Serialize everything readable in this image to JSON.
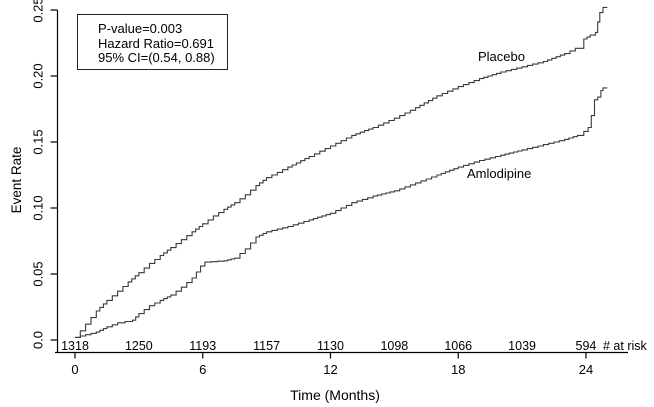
{
  "stats_box": {
    "lines": [
      "P-value=0.003",
      "Hazard Ratio=0.691",
      "95% CI=(0.54, 0.88)"
    ]
  },
  "chart_data": {
    "type": "line",
    "subtype": "kaplan-meier-step",
    "title": "",
    "xlabel": "Time (Months)",
    "ylabel": "Event Rate",
    "xlim": [
      0,
      25
    ],
    "ylim": [
      0,
      0.25
    ],
    "grid": false,
    "legend_position": "inline-curve-labels",
    "xticks": [
      0,
      6,
      12,
      18,
      24
    ],
    "yticks": [
      "0.0",
      "0.05",
      "0.10",
      "0.15",
      "0.20",
      "0.25"
    ],
    "axis_color": "#000000",
    "curve_color": "#3a3a3a",
    "stats": {
      "p_value": 0.003,
      "hazard_ratio": 0.691,
      "ci_95": [
        0.54,
        0.88
      ]
    },
    "series": [
      {
        "name": "Placebo",
        "color": "#3a3a3a",
        "points": [
          [
            0,
            0.002
          ],
          [
            0.5,
            0.012
          ],
          [
            1,
            0.022
          ],
          [
            1.5,
            0.03
          ],
          [
            2,
            0.037
          ],
          [
            2.5,
            0.044
          ],
          [
            3,
            0.051
          ],
          [
            3.5,
            0.058
          ],
          [
            4,
            0.064
          ],
          [
            4.5,
            0.07
          ],
          [
            5,
            0.076
          ],
          [
            5.5,
            0.082
          ],
          [
            6,
            0.088
          ],
          [
            6.5,
            0.094
          ],
          [
            7,
            0.099
          ],
          [
            7.5,
            0.104
          ],
          [
            8,
            0.11
          ],
          [
            8.5,
            0.117
          ],
          [
            9,
            0.123
          ],
          [
            9.5,
            0.127
          ],
          [
            10,
            0.131
          ],
          [
            11,
            0.139
          ],
          [
            12,
            0.147
          ],
          [
            13,
            0.155
          ],
          [
            14,
            0.161
          ],
          [
            15,
            0.168
          ],
          [
            16,
            0.176
          ],
          [
            17,
            0.185
          ],
          [
            18,
            0.192
          ],
          [
            19,
            0.198
          ],
          [
            20,
            0.203
          ],
          [
            21,
            0.207
          ],
          [
            22,
            0.211
          ],
          [
            23,
            0.217
          ],
          [
            23.5,
            0.221
          ],
          [
            23.9,
            0.228
          ],
          [
            24.2,
            0.231
          ],
          [
            24.45,
            0.233
          ],
          [
            24.55,
            0.241
          ],
          [
            24.65,
            0.248
          ],
          [
            24.8,
            0.252
          ],
          [
            25,
            0.252
          ]
        ]
      },
      {
        "name": "Amlodipine",
        "color": "#3a3a3a",
        "points": [
          [
            0,
            0.002
          ],
          [
            0.5,
            0.004
          ],
          [
            1,
            0.006
          ],
          [
            1.5,
            0.01
          ],
          [
            2,
            0.013
          ],
          [
            2.7,
            0.015
          ],
          [
            3,
            0.02
          ],
          [
            3.5,
            0.026
          ],
          [
            4,
            0.03
          ],
          [
            4.5,
            0.034
          ],
          [
            5,
            0.04
          ],
          [
            5.5,
            0.047
          ],
          [
            5.9,
            0.056
          ],
          [
            6.1,
            0.059
          ],
          [
            7,
            0.06
          ],
          [
            7.5,
            0.062
          ],
          [
            8,
            0.069
          ],
          [
            8.5,
            0.078
          ],
          [
            9,
            0.082
          ],
          [
            10,
            0.086
          ],
          [
            11,
            0.091
          ],
          [
            12,
            0.096
          ],
          [
            13,
            0.104
          ],
          [
            14,
            0.109
          ],
          [
            15,
            0.113
          ],
          [
            16,
            0.119
          ],
          [
            17,
            0.125
          ],
          [
            18,
            0.131
          ],
          [
            19,
            0.136
          ],
          [
            20,
            0.14
          ],
          [
            21,
            0.144
          ],
          [
            22,
            0.148
          ],
          [
            23,
            0.152
          ],
          [
            23.6,
            0.155
          ],
          [
            23.9,
            0.158
          ],
          [
            24.1,
            0.161
          ],
          [
            24.25,
            0.17
          ],
          [
            24.4,
            0.182
          ],
          [
            24.55,
            0.184
          ],
          [
            24.7,
            0.189
          ],
          [
            24.8,
            0.191
          ],
          [
            25,
            0.191
          ]
        ]
      }
    ],
    "at_risk": {
      "caption": "# at risk",
      "months": [
        0,
        3,
        6,
        9,
        12,
        15,
        18,
        21,
        24
      ],
      "counts": [
        1318,
        1250,
        1193,
        1157,
        1130,
        1098,
        1066,
        1039,
        594
      ]
    }
  }
}
